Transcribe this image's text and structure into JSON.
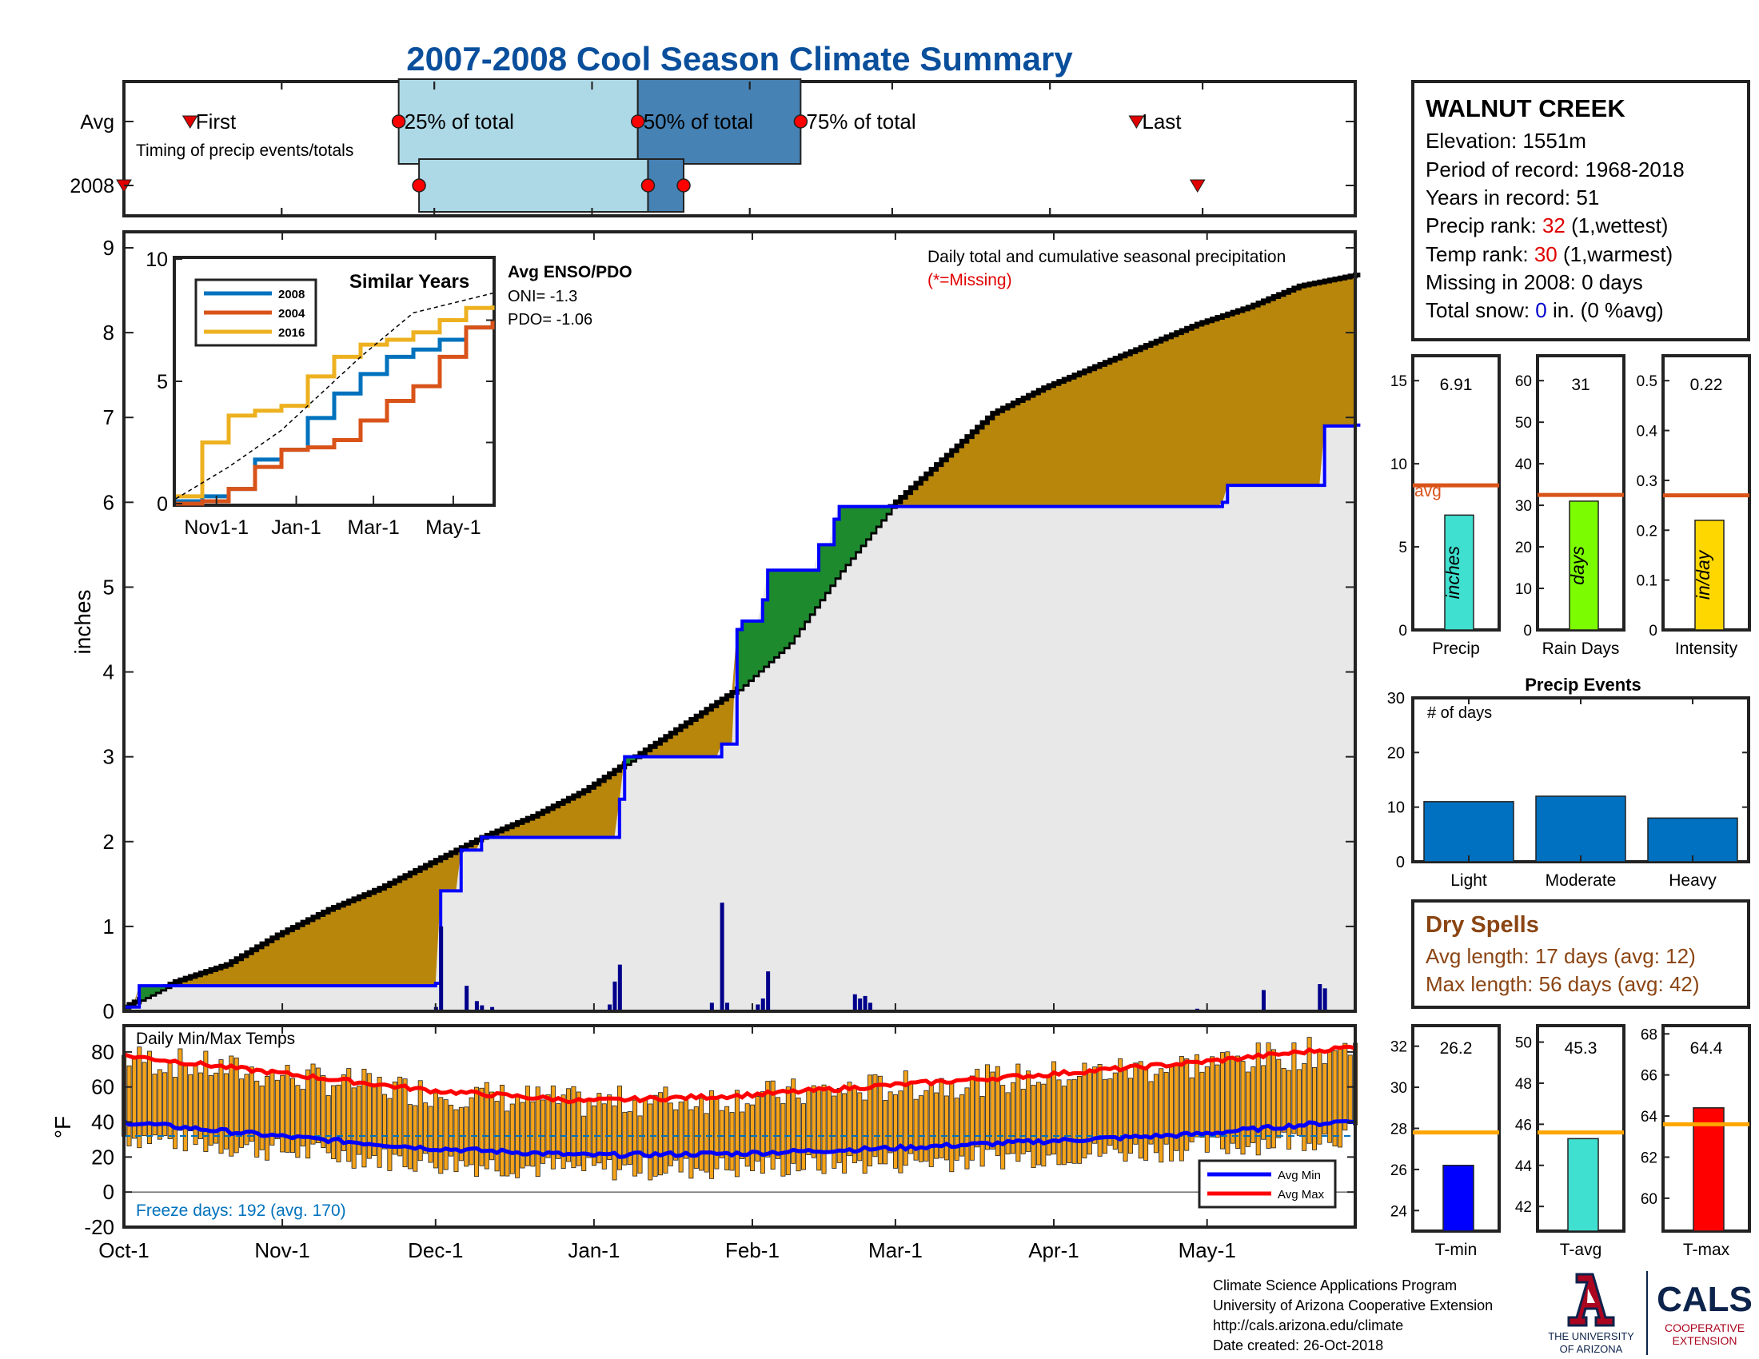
{
  "title": "2007-2008 Cool Season Climate Summary",
  "colors": {
    "title": "#0a4f9c",
    "cumulative_fill": "#b8860b",
    "cumulative_line": "#000000",
    "year_line": "#0000ff",
    "background_fill": "#e8e8e8",
    "daily_bar": "#00008b",
    "temp_bar": "#f4a31a",
    "avg_min": "#0000ff",
    "avg_max": "#ff0000",
    "series_2008": "#0072bd",
    "series_2004": "#d95319",
    "series_2016": "#edb120",
    "accent_red": "#e00000",
    "snow_blue": "#0000cc",
    "dry_brown": "#8b4513",
    "bar_precip": "#40e0d0",
    "bar_days": "#7cfc00",
    "bar_intensity": "#ffd700",
    "bar_events": "#0070c0",
    "bar_tmin": "#0000ff",
    "bar_tavg": "#40e0d0",
    "bar_tmax": "#ff0000",
    "avg_line_orange": "#d95319",
    "avg_line_gold": "#ffa500",
    "ua_red": "#ab0520",
    "ua_navy": "#0c234b"
  },
  "timing": {
    "row_labels": [
      "Avg",
      "2008"
    ],
    "labels": {
      "first": "First",
      "p25": "25% of total",
      "p50": "50% of total",
      "p75": "75% of total",
      "last": "Last"
    },
    "subtitle": "Timing of precip events/totals",
    "avg": {
      "first": 13,
      "p25": 54,
      "p50": 101,
      "p75": 133,
      "last": 199
    },
    "y2008": {
      "first": 0,
      "p25": 58,
      "p50": 103,
      "p75": 110,
      "last": 211
    }
  },
  "station": {
    "name": "WALNUT CREEK",
    "elevation": "Elevation: 1551m",
    "period": "Period of record: 1968-2018",
    "years": "Years in record: 51",
    "precip_rank_label": "Precip rank: ",
    "precip_rank_value": "32",
    "precip_rank_suffix": " (1,wettest)",
    "temp_rank_label": "Temp rank: ",
    "temp_rank_value": "30",
    "temp_rank_suffix": " (1,warmest)",
    "missing": "Missing in 2008: 0 days",
    "snow_label": "Total snow: ",
    "snow_value": "0",
    "snow_suffix": " in. (0 %avg)"
  },
  "main_chart": {
    "ylabel": "inches",
    "yticks": [
      "0",
      "1",
      "2",
      "3",
      "4",
      "5",
      "6",
      "7",
      "8",
      "9"
    ],
    "ylim": [
      0,
      9
    ],
    "xticks": [
      "Oct-1",
      "Nov-1",
      "Dec-1",
      "Jan-1",
      "Feb-1",
      "Mar-1",
      "Apr-1",
      "May-1"
    ],
    "xtick_days": [
      0,
      31,
      61,
      92,
      123,
      151,
      182,
      212
    ],
    "days_total": 242,
    "note": "Daily total and cumulative seasonal precipitation",
    "note_missing": "(*=Missing)",
    "enso_title": "Avg ENSO/PDO",
    "oni": "ONI= -1.3",
    "pdo": "PDO= -1.06"
  },
  "inset": {
    "title": "Similar Years",
    "yticks": [
      "0",
      "5",
      "10"
    ],
    "xticks": [
      "Nov1-1",
      "Jan-1",
      "Mar-1",
      "May-1"
    ],
    "legend": [
      "2008",
      "2004",
      "2016"
    ]
  },
  "mini_bars": {
    "precip": {
      "label": "Precip",
      "value": 6.91,
      "value_text": "6.91",
      "avg": 8.7,
      "avg_label": "avg",
      "unit": "inches",
      "yticks": [
        "0",
        "5",
        "10",
        "15"
      ],
      "ymax": 16.5
    },
    "rain_days": {
      "label": "Rain Days",
      "value": 31,
      "value_text": "31",
      "avg": 32.5,
      "unit": "days",
      "yticks": [
        "0",
        "10",
        "20",
        "30",
        "40",
        "50",
        "60"
      ],
      "ymax": 66
    },
    "intensity": {
      "label": "Intensity",
      "value": 0.22,
      "value_text": "0.22",
      "avg": 0.27,
      "unit": "in/day",
      "yticks": [
        "0",
        "0.1",
        "0.2",
        "0.3",
        "0.4",
        "0.5"
      ],
      "ymax": 0.55
    }
  },
  "events": {
    "title": "Precip Events",
    "subtitle": "# of days",
    "categories": [
      "Light",
      "Moderate",
      "Heavy"
    ],
    "values": [
      11,
      12,
      8
    ],
    "yticks": [
      "0",
      "10",
      "20",
      "30"
    ],
    "ymax": 30
  },
  "dry_spells": {
    "title": "Dry Spells",
    "avg": "Avg length: 17 days (avg: 12)",
    "max": "Max length: 56 days (avg: 42)"
  },
  "temps": {
    "title": "Daily Min/Max Temps",
    "ylabel": "°F",
    "yticks": [
      "-20",
      "0",
      "20",
      "40",
      "60",
      "80"
    ],
    "freeze": "Freeze days: 192 (avg. 170)",
    "legend": [
      "Avg Min",
      "Avg Max"
    ]
  },
  "temp_bars": {
    "tmin": {
      "label": "T-min",
      "value": 26.2,
      "value_text": "26.2",
      "avg": 27.8,
      "yticks": [
        "24",
        "26",
        "28",
        "30",
        "32"
      ],
      "ymin": 23,
      "ymax": 33
    },
    "tavg": {
      "label": "T-avg",
      "value": 45.3,
      "value_text": "45.3",
      "avg": 45.6,
      "yticks": [
        "42",
        "44",
        "46",
        "48",
        "50"
      ],
      "ymin": 40.8,
      "ymax": 50.8
    },
    "tmax": {
      "label": "T-max",
      "value": 64.4,
      "value_text": "64.4",
      "avg": 63.6,
      "yticks": [
        "60",
        "62",
        "64",
        "66",
        "68"
      ],
      "ymin": 58.4,
      "ymax": 68.4
    }
  },
  "footer": {
    "lines": [
      "Climate Science Applications Program",
      "University of Arizona Cooperative Extension",
      "http://cals.arizona.edu/climate",
      " Date created: 26-Oct-2018"
    ]
  },
  "logos": {
    "ua_line1": "THE UNIVERSITY",
    "ua_line2": "OF ARIZONA",
    "cals": "CALS",
    "cals_line1": "COOPERATIVE",
    "cals_line2": "EXTENSION"
  },
  "chart_data": [
    {
      "type": "area",
      "title": "Daily total and cumulative seasonal precipitation",
      "ylabel": "inches",
      "ylim": [
        0,
        9
      ],
      "x_unit": "day of season (Oct-1 = 0)",
      "series": [
        {
          "name": "Avg",
          "x": [
            0,
            10,
            20,
            30,
            40,
            50,
            60,
            70,
            80,
            90,
            100,
            110,
            120,
            130,
            140,
            150,
            160,
            170,
            180,
            190,
            200,
            210,
            220,
            230,
            241
          ],
          "values": [
            0.05,
            0.35,
            0.55,
            0.9,
            1.2,
            1.45,
            1.75,
            2.05,
            2.3,
            2.6,
            3.0,
            3.4,
            3.8,
            4.35,
            5.2,
            5.95,
            6.5,
            7.05,
            7.35,
            7.6,
            7.85,
            8.1,
            8.3,
            8.55,
            8.68
          ]
        },
        {
          "name": "2008",
          "x": [
            0,
            3,
            61,
            61.5,
            64,
            66,
            70,
            96,
            97,
            98,
            116,
            117,
            120,
            121,
            125,
            126,
            131,
            136,
            139,
            140,
            215,
            216,
            234,
            235,
            241
          ],
          "values": [
            0.05,
            0.3,
            0.33,
            1.42,
            1.42,
            1.9,
            2.05,
            2.05,
            2.5,
            3.0,
            3.0,
            3.15,
            4.5,
            4.6,
            4.85,
            5.2,
            5.2,
            5.5,
            5.8,
            5.95,
            6.0,
            6.2,
            6.2,
            6.9,
            6.91
          ]
        },
        {
          "name": "daily",
          "x": [
            61,
            62,
            67,
            69,
            70,
            72,
            95,
            96,
            97,
            115,
            117,
            118,
            124,
            125,
            126,
            143,
            144,
            145,
            146,
            210,
            223,
            234,
            235
          ],
          "values": [
            0.05,
            1.0,
            0.3,
            0.12,
            0.07,
            0.05,
            0.08,
            0.35,
            0.55,
            0.1,
            1.28,
            0.1,
            0.08,
            0.15,
            0.47,
            0.2,
            0.15,
            0.18,
            0.1,
            0.03,
            0.25,
            0.32,
            0.27
          ]
        }
      ]
    },
    {
      "type": "line",
      "title": "Similar Years",
      "ylim": [
        0,
        10
      ],
      "series": [
        {
          "name": "2008",
          "x": [
            0,
            20,
            40,
            60,
            80,
            100,
            120,
            140,
            160,
            180,
            200,
            220,
            240
          ],
          "values": [
            0.1,
            0.3,
            0.6,
            1.8,
            2.2,
            3.5,
            4.5,
            5.3,
            6.0,
            6.3,
            6.7,
            7.2,
            7.4
          ]
        },
        {
          "name": "2004",
          "x": [
            0,
            20,
            40,
            60,
            80,
            100,
            120,
            140,
            160,
            180,
            200,
            220,
            240
          ],
          "values": [
            0.0,
            0.1,
            0.6,
            1.5,
            2.2,
            2.3,
            2.6,
            3.4,
            4.2,
            4.8,
            6.0,
            7.2,
            7.5
          ]
        },
        {
          "name": "2016",
          "x": [
            0,
            20,
            40,
            60,
            80,
            100,
            120,
            140,
            160,
            180,
            200,
            220,
            240
          ],
          "values": [
            0.3,
            2.5,
            3.6,
            3.8,
            4.0,
            5.2,
            6.0,
            6.5,
            6.7,
            7.0,
            7.5,
            8.0,
            8.1
          ]
        },
        {
          "name": "Avg",
          "x": [
            0,
            40,
            80,
            120,
            140,
            180,
            240
          ],
          "values": [
            0.2,
            1.5,
            3.0,
            5.0,
            6.0,
            7.8,
            8.6
          ]
        }
      ]
    },
    {
      "type": "bar",
      "title": "Precip Events",
      "categories": [
        "Light",
        "Moderate",
        "Heavy"
      ],
      "values": [
        11,
        12,
        8
      ],
      "ylim": [
        0,
        30
      ]
    },
    {
      "type": "line",
      "title": "Daily Min/Max Temps",
      "ylabel": "°F",
      "ylim": [
        -20,
        95
      ],
      "series": [
        {
          "name": "Avg Min",
          "x": [
            0,
            30,
            60,
            90,
            120,
            150,
            180,
            210,
            241
          ],
          "values": [
            40,
            32,
            25,
            21,
            22,
            25,
            29,
            33,
            41
          ]
        },
        {
          "name": "Avg Max",
          "x": [
            0,
            30,
            60,
            90,
            120,
            150,
            180,
            210,
            241
          ],
          "values": [
            78,
            68,
            58,
            52,
            55,
            61,
            67,
            74,
            83
          ]
        }
      ]
    },
    {
      "type": "bar",
      "categories": [
        "T-min",
        "T-avg",
        "T-max"
      ],
      "values": [
        26.2,
        45.3,
        64.4
      ]
    }
  ]
}
